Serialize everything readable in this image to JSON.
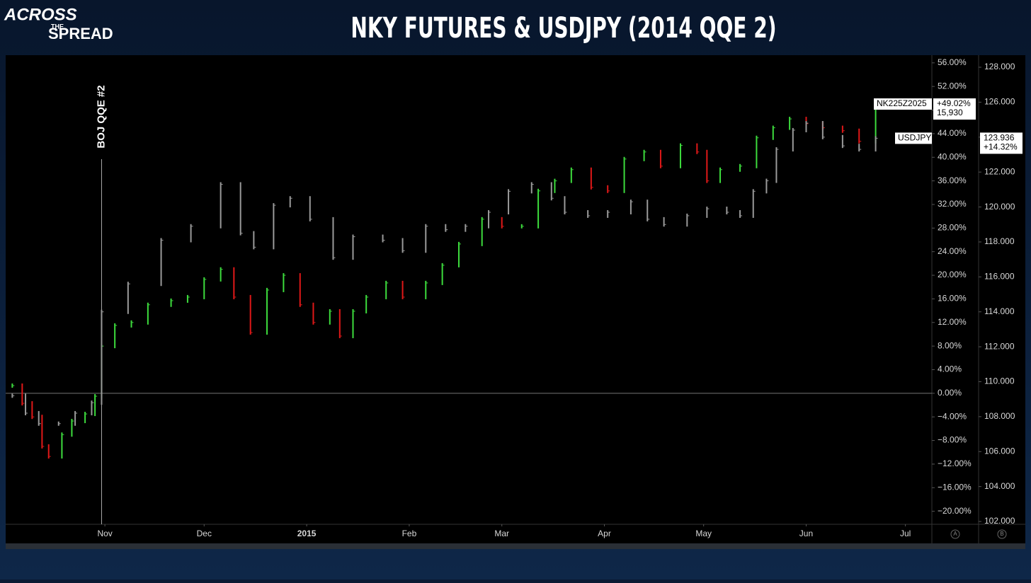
{
  "header": {
    "logo": [
      "ACROSS",
      "THE",
      "SPREAD"
    ]
  },
  "chart_data": {
    "type": "ohlc",
    "title": "NKY FUTURES & USDJPY (2014 QQE 2)",
    "annotation": {
      "x": 30,
      "label": "BOJ QQE #2"
    },
    "xlim": [
      1,
      281
    ],
    "xticks": [
      {
        "value": 31,
        "label": "Nov"
      },
      {
        "value": 61,
        "label": "Dec"
      },
      {
        "value": 92,
        "label": "2015"
      },
      {
        "value": 123,
        "label": "Feb"
      },
      {
        "value": 151,
        "label": "Mar"
      },
      {
        "value": 182,
        "label": "Apr"
      },
      {
        "value": 212,
        "label": "May"
      },
      {
        "value": 243,
        "label": "Jun"
      },
      {
        "value": 273,
        "label": "Jul"
      }
    ],
    "ylim": [
      -22.2,
      57.3
    ],
    "yticks": [
      {
        "value": -20,
        "label": "−20.00%"
      },
      {
        "value": -16,
        "label": "−16.00%"
      },
      {
        "value": -12,
        "label": "−12.00%"
      },
      {
        "value": -8,
        "label": "−8.00%"
      },
      {
        "value": -4,
        "label": "−4.00%"
      },
      {
        "value": 0,
        "label": "0.00%"
      },
      {
        "value": 4,
        "label": "4.00%"
      },
      {
        "value": 8,
        "label": "8.00%"
      },
      {
        "value": 12,
        "label": "12.00%"
      },
      {
        "value": 16,
        "label": "16.00%"
      },
      {
        "value": 20,
        "label": "20.00%"
      },
      {
        "value": 24,
        "label": "24.00%"
      },
      {
        "value": 28,
        "label": "28.00%"
      },
      {
        "value": 32,
        "label": "32.00%"
      },
      {
        "value": 36,
        "label": "36.00%"
      },
      {
        "value": 40,
        "label": "40.00%"
      },
      {
        "value": 44,
        "label": "44.00%"
      },
      {
        "value": 48,
        "label": "48.00%"
      },
      {
        "value": 52,
        "label": "52.00%"
      },
      {
        "value": 56,
        "label": "56.00%"
      }
    ],
    "y2lim": [
      101.84,
      128.69
    ],
    "y2ticks": [
      {
        "value": 102,
        "label": "102.000"
      },
      {
        "value": 104,
        "label": "104.000"
      },
      {
        "value": 106,
        "label": "106.000"
      },
      {
        "value": 108,
        "label": "108.000"
      },
      {
        "value": 110,
        "label": "110.000"
      },
      {
        "value": 112,
        "label": "112.000"
      },
      {
        "value": 114,
        "label": "114.000"
      },
      {
        "value": 116,
        "label": "116.000"
      },
      {
        "value": 118,
        "label": "118.000"
      },
      {
        "value": 120,
        "label": "120.000"
      },
      {
        "value": 122,
        "label": "122.000"
      },
      {
        "value": 124,
        "label": "124.000"
      },
      {
        "value": 126,
        "label": "126.000"
      },
      {
        "value": 128,
        "label": "128.000"
      }
    ],
    "axis_buttons": [
      "A",
      "B"
    ],
    "series": [
      {
        "name": "NK225Z2025",
        "up_color": "#3ddc3d",
        "down_color": "#e01818",
        "last_labels": [
          "+49.02%",
          "15,930"
        ],
        "x": [
          3,
          6,
          9,
          12,
          14,
          18,
          21,
          25,
          28,
          30,
          34,
          39,
          44,
          51,
          56,
          61,
          66,
          70,
          75,
          80,
          85,
          90,
          94,
          99,
          102,
          106,
          110,
          116,
          121,
          128,
          133,
          138,
          145,
          151,
          157,
          162,
          167,
          172,
          178,
          183,
          188,
          194,
          199,
          205,
          210,
          213,
          217,
          223,
          228,
          233,
          238,
          243,
          248,
          254,
          259,
          264
        ],
        "values": [
          1.3,
          -1.7,
          -4,
          -9,
          -10.7,
          -7,
          -4.7,
          -3.5,
          -0.5,
          8,
          11.5,
          12,
          15,
          15.7,
          16.3,
          19.3,
          21,
          16.3,
          10.3,
          17.5,
          20,
          15,
          12,
          13.9,
          9.7,
          13.9,
          16.3,
          18.7,
          16.3,
          18.7,
          21.7,
          25.3,
          29.5,
          28.3,
          28.3,
          34.3,
          36,
          37.9,
          34.9,
          34.3,
          39.7,
          40.9,
          38.5,
          42,
          40.9,
          36,
          37.9,
          38.5,
          43.3,
          45,
          46.5,
          45.7,
          45,
          44.5,
          42.7,
          49.02
        ]
      },
      {
        "name": "USDJPY",
        "axis": "y2",
        "up_color": "#9a9a9a",
        "down_color": "#9a9a9a",
        "last_labels": [
          "123.936",
          "+14.32%"
        ],
        "x": [
          3,
          7,
          11,
          17,
          22,
          27,
          30,
          38,
          48,
          57,
          66,
          72,
          76,
          82,
          87,
          93,
          100,
          106,
          115,
          121,
          128,
          134,
          140,
          147,
          153,
          160,
          166,
          170,
          177,
          183,
          190,
          195,
          200,
          207,
          213,
          219,
          223,
          227,
          231,
          234,
          239,
          243,
          248,
          254,
          259,
          264
        ],
        "values": [
          109.2,
          108.2,
          107.6,
          107.6,
          108.2,
          108.8,
          114,
          115.6,
          118.1,
          118.9,
          121.3,
          118.5,
          117.7,
          120.1,
          120.5,
          119.3,
          117.1,
          118.3,
          118.1,
          117.5,
          118.9,
          118.7,
          118.9,
          119.7,
          120.9,
          121.3,
          120.5,
          119.7,
          119.5,
          119.7,
          120.3,
          119.3,
          119,
          119.5,
          119.9,
          119.7,
          119.5,
          120.9,
          121.5,
          123.3,
          124.4,
          124.8,
          124,
          123.5,
          123.3,
          123.936
        ]
      }
    ]
  }
}
